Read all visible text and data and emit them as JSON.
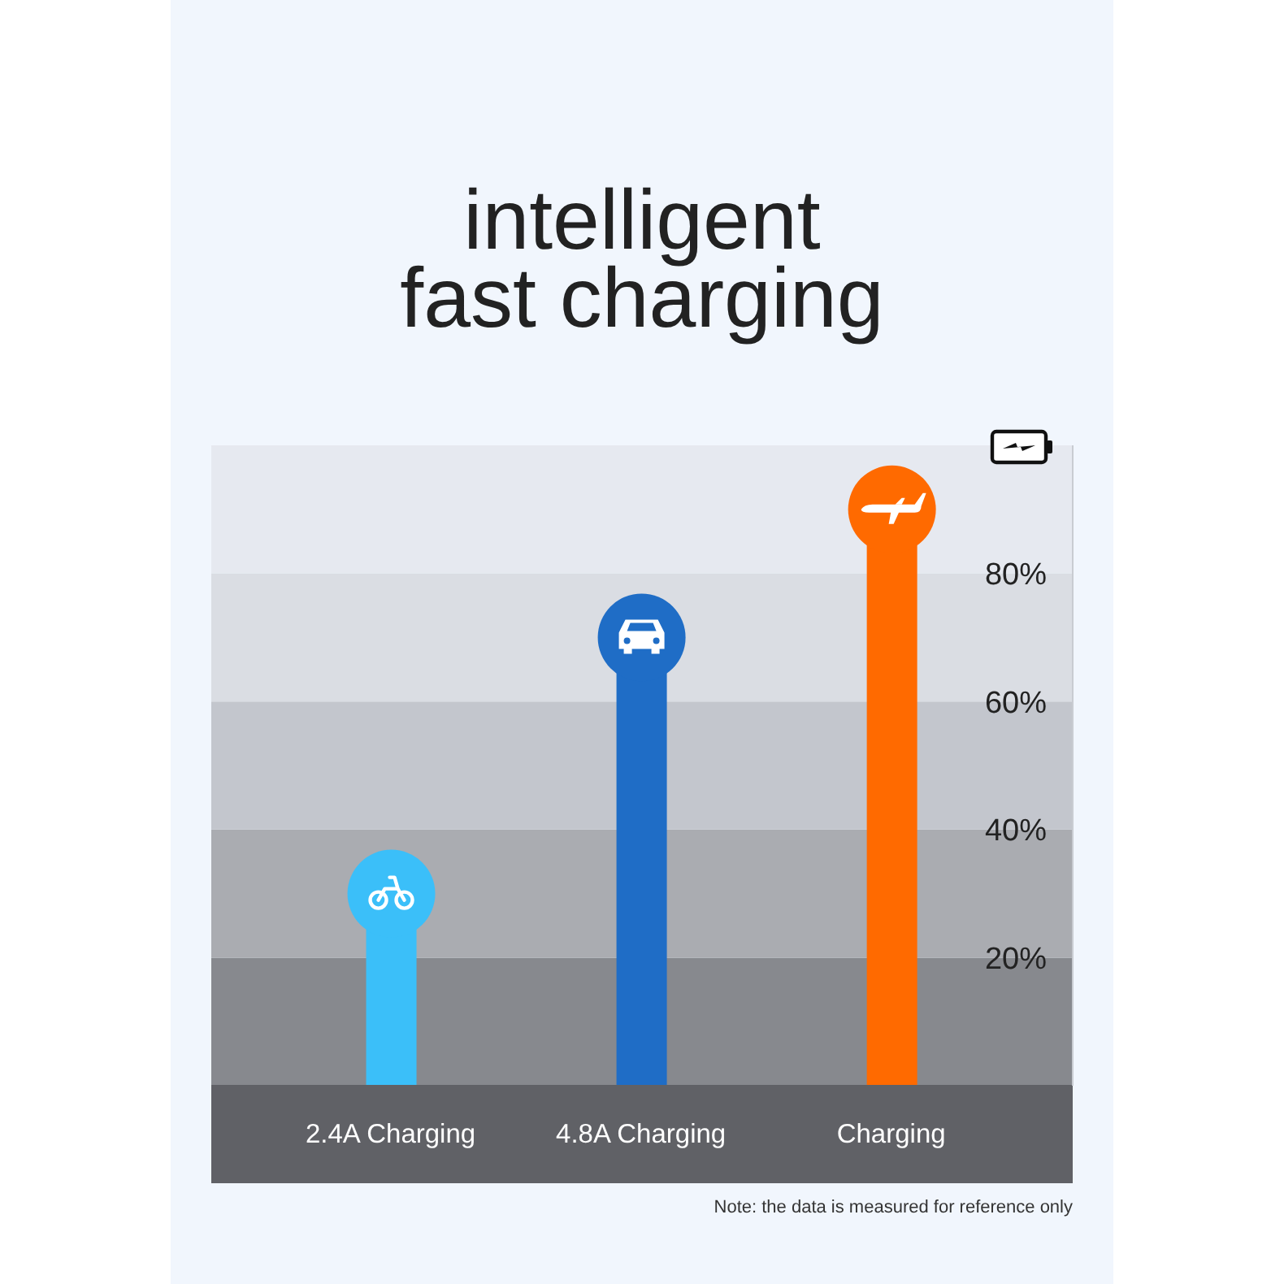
{
  "chart_data": {
    "type": "lollipop",
    "title": "intelligent fast charging",
    "categories": [
      "2.4A Charging",
      "4.8A Charging",
      "Charging"
    ],
    "values": [
      30,
      70,
      90
    ],
    "colors": [
      "#3bbff9",
      "#1f6dc6",
      "#ff6a00"
    ],
    "marker": "circle",
    "ylim": [
      0,
      100
    ],
    "yticks": [
      {
        "value": 20,
        "label": "20%"
      },
      {
        "value": 40,
        "label": "40%"
      },
      {
        "value": 60,
        "label": "60%"
      },
      {
        "value": 80,
        "label": "80%"
      }
    ],
    "bands": [
      {
        "axis": "y",
        "from": 0,
        "to": 20,
        "color": "#87898e"
      },
      {
        "axis": "y",
        "from": 20,
        "to": 40,
        "color": "#aaacb1"
      },
      {
        "axis": "y",
        "from": 40,
        "to": 60,
        "color": "#c3c6cd"
      },
      {
        "axis": "y",
        "from": 60,
        "to": 80,
        "color": "#dadde3"
      },
      {
        "axis": "y",
        "from": 80,
        "to": 100,
        "color": "#e6e9f0"
      }
    ],
    "annotations": [
      "Note: the data is measured for reference only"
    ]
  }
}
